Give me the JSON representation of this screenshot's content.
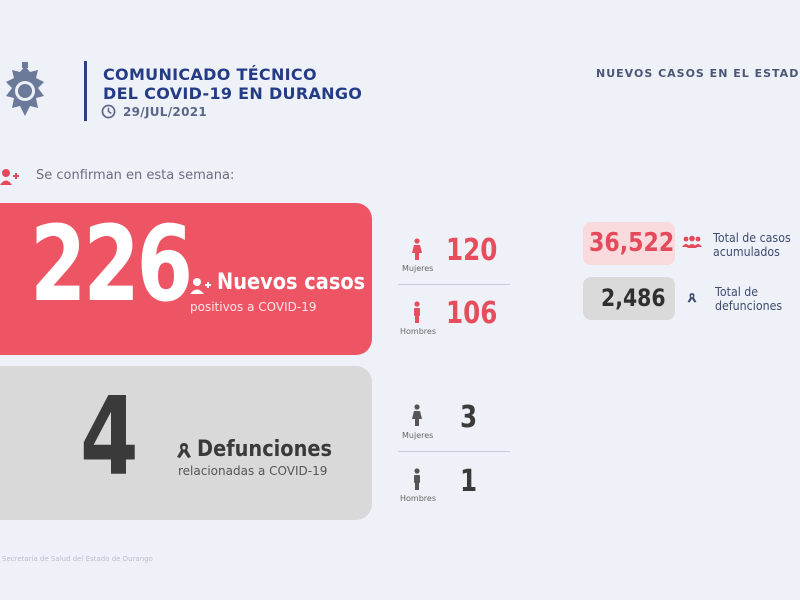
{
  "header": {
    "title_line1": "COMUNICADO TÉCNICO",
    "title_line2": "DEL COVID-19 EN DURANGO",
    "date": "29/JUL/2021",
    "section_title": "NUEVOS CASOS EN EL ESTAD"
  },
  "intro": {
    "text": "Se confirman en esta semana:"
  },
  "new_cases": {
    "number": "226",
    "label": "Nuevos casos",
    "sublabel": "positivos a COVID-19",
    "women_label": "Mujeres",
    "women": "120",
    "men_label": "Hombres",
    "men": "106"
  },
  "deaths": {
    "number": "4",
    "label": "Defunciones",
    "sublabel": "relacionadas a COVID-19",
    "women_label": "Mujeres",
    "women": "3",
    "men_label": "Hombres",
    "men": "1"
  },
  "totals": {
    "cases_value": "36,522",
    "cases_label_1": "Total de casos",
    "cases_label_2": "acumulados",
    "deaths_value": "2,486",
    "deaths_label_1": "Total de",
    "deaths_label_2": "defunciones"
  },
  "footer": {
    "source": "Secretaría de Salud del Estado de Durango"
  },
  "colors": {
    "accent_red": "#ed5565",
    "brand_blue": "#243b86",
    "grey_card": "#d9d9da"
  },
  "icons": [
    "coat-of-arms-logo",
    "clock-icon",
    "user-plus-icon",
    "person-icon",
    "ribbon-icon",
    "group-icon"
  ]
}
